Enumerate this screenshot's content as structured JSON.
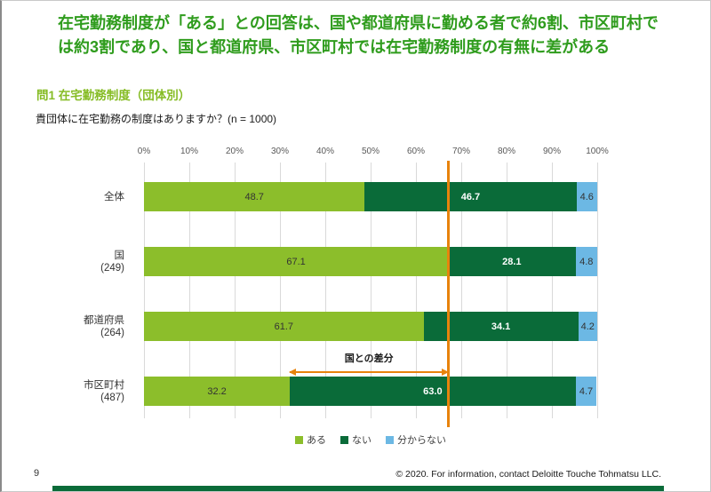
{
  "slide": {
    "title_line1": "在宅勤務制度が「ある」との回答は、国や都道府県に勤める者で約6割、市区町村で",
    "title_line2": "は約3割であり、国と都道府県、市区町村では在宅勤務制度の有無に差がある",
    "question_heading": "問1 在宅勤務制度（団体別）",
    "question_text": "貴団体に在宅勤務の制度はありますか？(n = 1000)",
    "page_number": "9",
    "copyright": "© 2020. For information, contact Deloitte Touche Tohmatsu LLC."
  },
  "colors": {
    "title_green": "#2f9c1d",
    "heading_green": "#86bc25",
    "reference_line_orange": "#e8830c",
    "footer_bar_green": "#0a6b39",
    "gridline_gray": "#d9d9d9"
  },
  "chart_data": {
    "type": "bar",
    "orientation": "horizontal-stacked",
    "title": "",
    "xlabel": "",
    "ylabel": "",
    "xlim": [
      0,
      100
    ],
    "x_ticks": [
      "0%",
      "10%",
      "20%",
      "30%",
      "40%",
      "50%",
      "60%",
      "70%",
      "80%",
      "90%",
      "100%"
    ],
    "grid": true,
    "categories": [
      {
        "label": "全体",
        "count": ""
      },
      {
        "label": "国",
        "count": "(249)"
      },
      {
        "label": "都道府県",
        "count": "(264)"
      },
      {
        "label": "市区町村",
        "count": "(487)"
      }
    ],
    "series": [
      {
        "name": "ある",
        "color": "#8cbe2b",
        "values": [
          48.7,
          67.1,
          61.7,
          32.2
        ]
      },
      {
        "name": "ない",
        "color": "#0a6b39",
        "values": [
          46.7,
          28.1,
          34.1,
          63.0
        ]
      },
      {
        "name": "分からない",
        "color": "#6cb8e4",
        "values": [
          4.6,
          4.8,
          4.2,
          4.7
        ]
      }
    ],
    "reference_line_x": 67.1,
    "annotation": {
      "label": "国との差分",
      "from_x": 32.2,
      "to_x": 67.1,
      "row_index": 3
    },
    "legend": [
      "ある",
      "ない",
      "分からない"
    ],
    "legend_position": "bottom-center"
  }
}
